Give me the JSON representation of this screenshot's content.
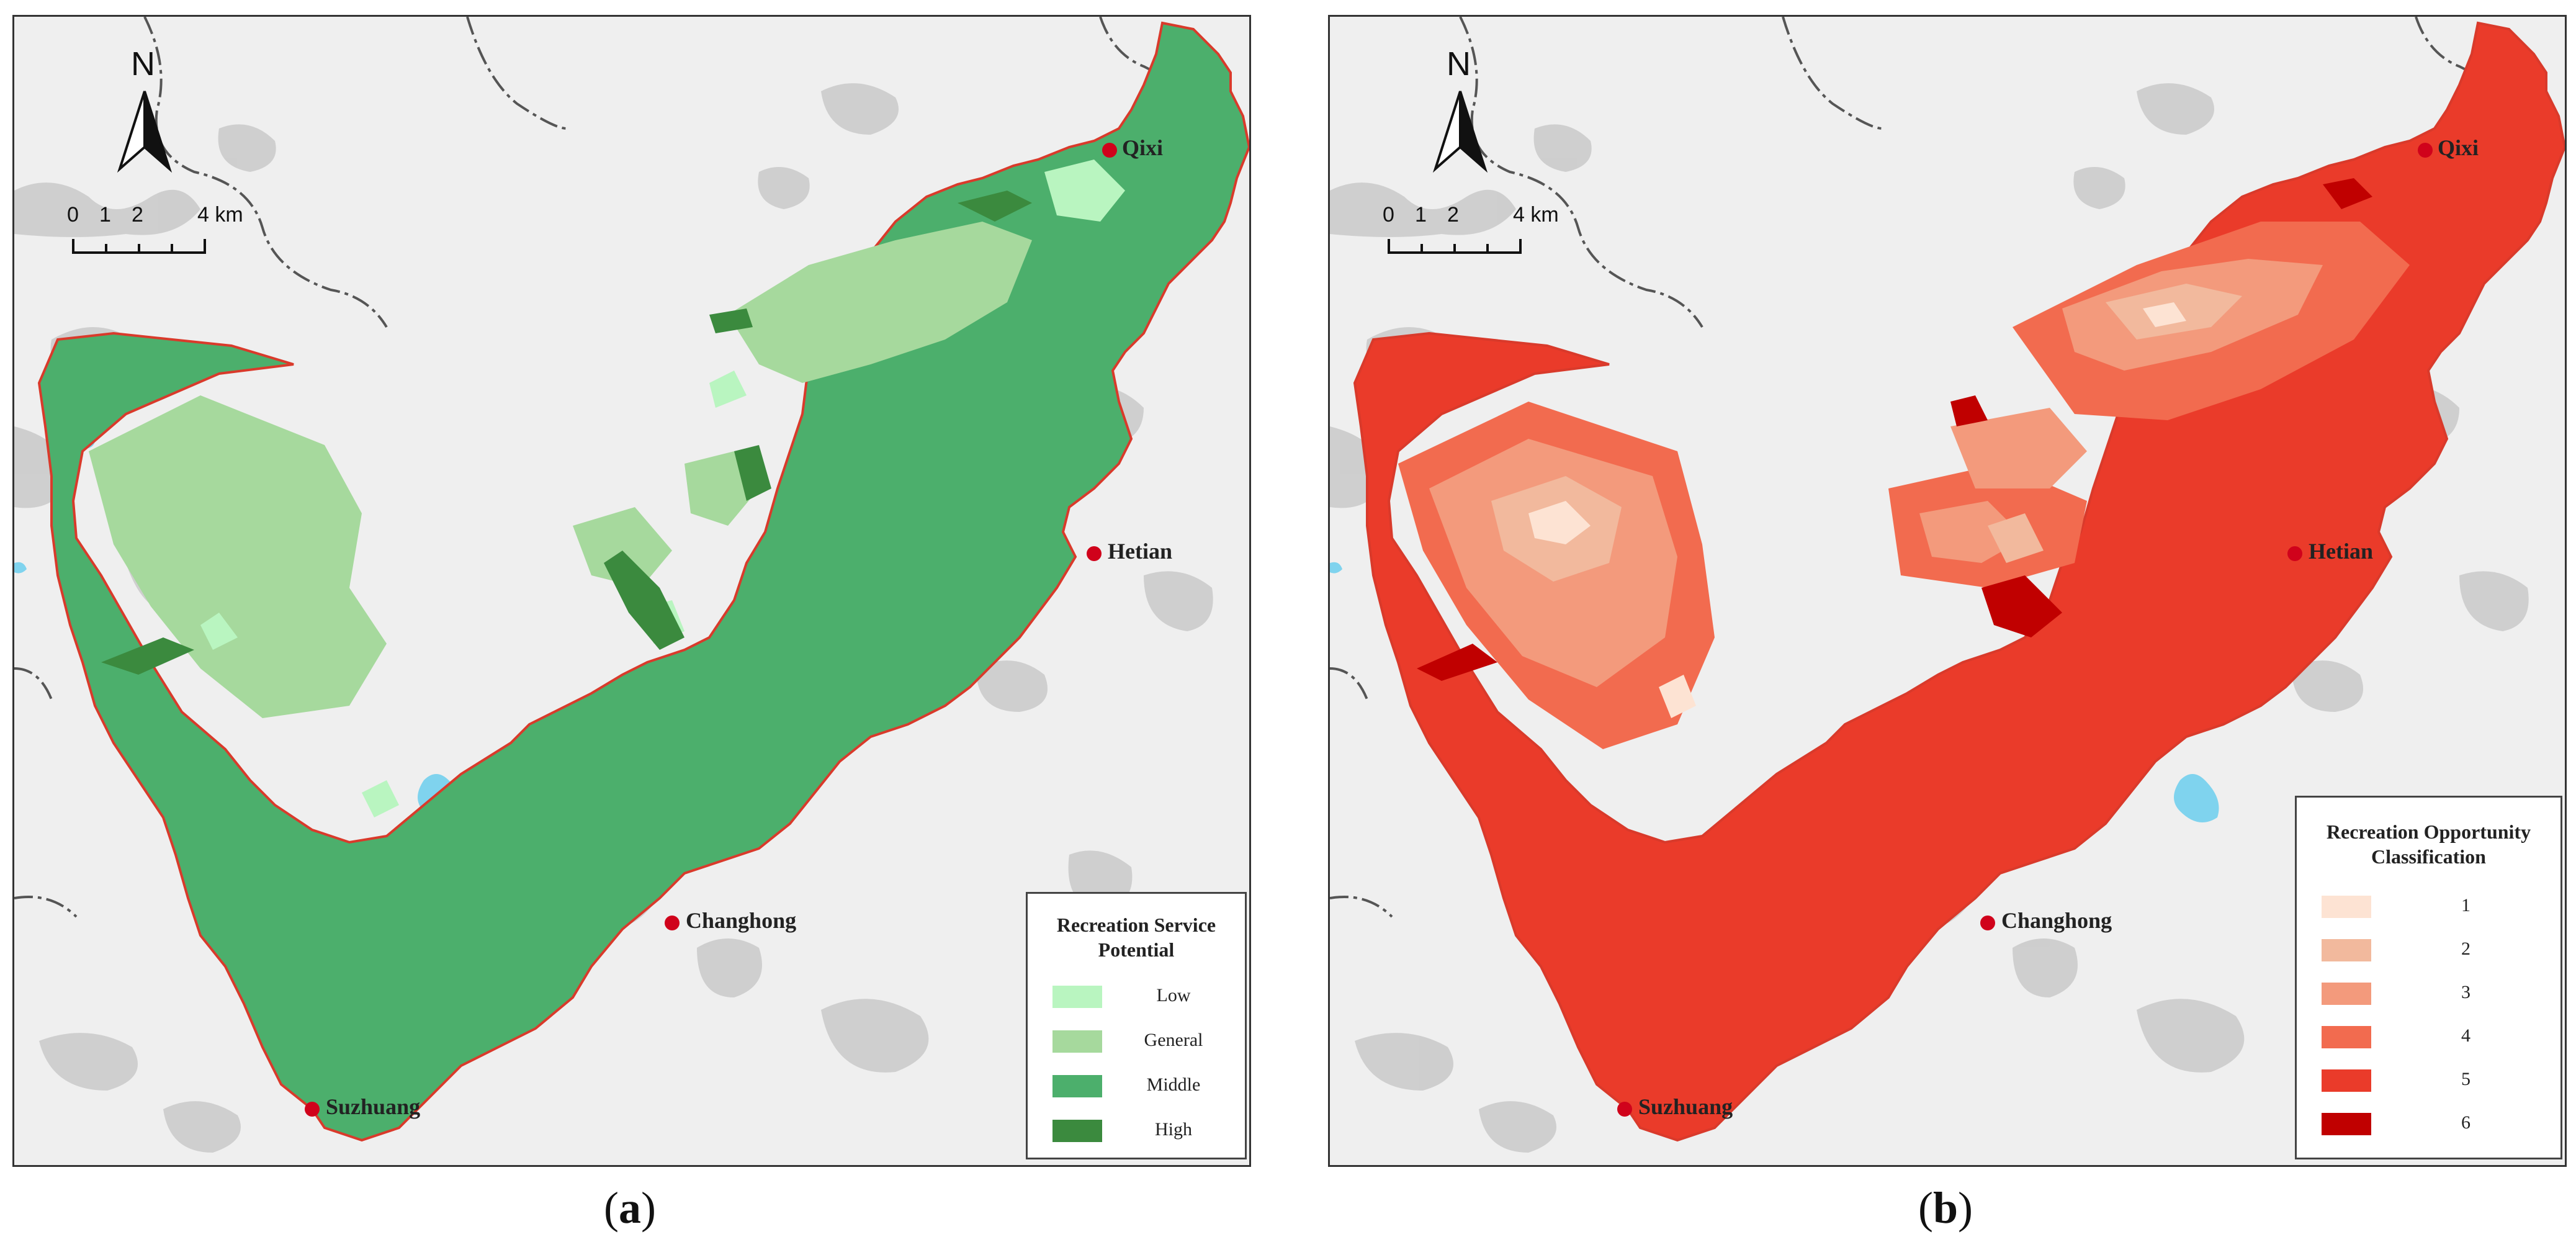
{
  "panels": [
    {
      "id": "a",
      "caption_open": "(",
      "caption_letter": "a",
      "caption_close": ")",
      "north_label": "N",
      "scale_labels": [
        "0",
        "1",
        "2",
        "4 km"
      ],
      "legend": {
        "title_line1": "Recreation Service",
        "title_line2": "Potential",
        "items": [
          {
            "label": "Low",
            "color": "#b9f5c0"
          },
          {
            "label": "General",
            "color": "#a6d99d"
          },
          {
            "label": "Middle",
            "color": "#4caf6c"
          },
          {
            "label": "High",
            "color": "#3b8a3e"
          }
        ]
      },
      "towns": [
        "Qixi",
        "Hetian",
        "Changhong",
        "Suzhuang"
      ]
    },
    {
      "id": "b",
      "caption_open": "(",
      "caption_letter": "b",
      "caption_close": ")",
      "north_label": "N",
      "scale_labels": [
        "0",
        "1",
        "2",
        "4 km"
      ],
      "legend": {
        "title_line1": "Recreation Opportunity",
        "title_line2": "Classification",
        "items": [
          {
            "label": "1",
            "color": "#fde3d3"
          },
          {
            "label": "2",
            "color": "#f2b99d"
          },
          {
            "label": "3",
            "color": "#f39a7c"
          },
          {
            "label": "4",
            "color": "#f26b4f"
          },
          {
            "label": "5",
            "color": "#ea3b2a"
          },
          {
            "label": "6",
            "color": "#c00000"
          }
        ]
      },
      "towns": [
        "Qixi",
        "Hetian",
        "Changhong",
        "Suzhuang"
      ]
    }
  ],
  "colors": {
    "background": "#efefef",
    "terrain": "#c9c9c9",
    "water": "#7fd3ee",
    "boundary": "#d93a2b",
    "town_marker": "#d0021b"
  }
}
